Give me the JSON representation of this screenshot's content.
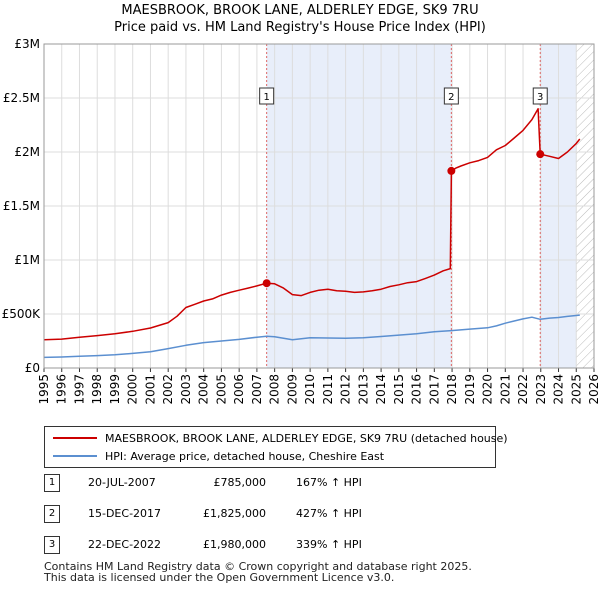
{
  "chart_data": {
    "type": "line",
    "title": "MAESBROOK, BROOK LANE, ALDERLEY EDGE, SK9 7RU",
    "subtitle": "Price paid vs. HM Land Registry's House Price Index (HPI)",
    "xlim": [
      1995,
      2026
    ],
    "ylim": [
      0,
      3000000
    ],
    "y_ticks": [
      {
        "value": 0,
        "label": "£0"
      },
      {
        "value": 500000,
        "label": "£500K"
      },
      {
        "value": 1000000,
        "label": "£1M"
      },
      {
        "value": 1500000,
        "label": "£1.5M"
      },
      {
        "value": 2000000,
        "label": "£2M"
      },
      {
        "value": 2500000,
        "label": "£2.5M"
      },
      {
        "value": 3000000,
        "label": "£3M"
      }
    ],
    "x_ticks": [
      "1995",
      "1996",
      "1997",
      "1998",
      "1999",
      "2000",
      "2001",
      "2002",
      "2003",
      "2004",
      "2005",
      "2006",
      "2007",
      "2008",
      "2009",
      "2010",
      "2011",
      "2012",
      "2013",
      "2014",
      "2015",
      "2016",
      "2017",
      "2018",
      "2019",
      "2020",
      "2021",
      "2022",
      "2023",
      "2024",
      "2025",
      "2026"
    ],
    "shaded_ranges": [
      [
        2007.55,
        2017.96
      ],
      [
        2022.97,
        2025.0
      ]
    ],
    "hatched_range": [
      2025.0,
      2026.0
    ],
    "series": [
      {
        "name": "MAESBROOK, BROOK LANE, ALDERLEY EDGE, SK9 7RU (detached house)",
        "color": "#cc0000",
        "points": [
          [
            1995.0,
            262000
          ],
          [
            1996.0,
            268000
          ],
          [
            1997.0,
            285000
          ],
          [
            1998.0,
            300000
          ],
          [
            1999.0,
            318000
          ],
          [
            2000.0,
            340000
          ],
          [
            2001.0,
            370000
          ],
          [
            2002.0,
            420000
          ],
          [
            2002.5,
            480000
          ],
          [
            2003.0,
            560000
          ],
          [
            2003.5,
            590000
          ],
          [
            2004.0,
            620000
          ],
          [
            2004.5,
            640000
          ],
          [
            2005.0,
            675000
          ],
          [
            2005.5,
            700000
          ],
          [
            2006.0,
            720000
          ],
          [
            2006.5,
            740000
          ],
          [
            2007.0,
            760000
          ],
          [
            2007.55,
            785000
          ],
          [
            2008.0,
            780000
          ],
          [
            2008.5,
            740000
          ],
          [
            2009.0,
            680000
          ],
          [
            2009.5,
            670000
          ],
          [
            2010.0,
            700000
          ],
          [
            2010.5,
            720000
          ],
          [
            2011.0,
            730000
          ],
          [
            2011.5,
            715000
          ],
          [
            2012.0,
            710000
          ],
          [
            2012.5,
            700000
          ],
          [
            2013.0,
            705000
          ],
          [
            2013.5,
            715000
          ],
          [
            2014.0,
            730000
          ],
          [
            2014.5,
            755000
          ],
          [
            2015.0,
            770000
          ],
          [
            2015.5,
            790000
          ],
          [
            2016.0,
            800000
          ],
          [
            2016.5,
            830000
          ],
          [
            2017.0,
            860000
          ],
          [
            2017.5,
            900000
          ],
          [
            2017.9,
            920000
          ],
          [
            2017.96,
            1825000
          ],
          [
            2018.2,
            1850000
          ],
          [
            2018.5,
            1870000
          ],
          [
            2019.0,
            1900000
          ],
          [
            2019.5,
            1920000
          ],
          [
            2020.0,
            1950000
          ],
          [
            2020.5,
            2020000
          ],
          [
            2021.0,
            2060000
          ],
          [
            2021.5,
            2130000
          ],
          [
            2022.0,
            2200000
          ],
          [
            2022.5,
            2300000
          ],
          [
            2022.85,
            2400000
          ],
          [
            2022.97,
            1980000
          ],
          [
            2023.5,
            1960000
          ],
          [
            2024.0,
            1940000
          ],
          [
            2024.5,
            2000000
          ],
          [
            2025.0,
            2080000
          ],
          [
            2025.2,
            2120000
          ]
        ]
      },
      {
        "name": "HPI: Average price, detached house, Cheshire East",
        "color": "#5b8fd0",
        "points": [
          [
            1995.0,
            98000
          ],
          [
            1996.0,
            102000
          ],
          [
            1997.0,
            108000
          ],
          [
            1998.0,
            115000
          ],
          [
            1999.0,
            122000
          ],
          [
            2000.0,
            135000
          ],
          [
            2001.0,
            150000
          ],
          [
            2002.0,
            180000
          ],
          [
            2003.0,
            210000
          ],
          [
            2004.0,
            235000
          ],
          [
            2005.0,
            250000
          ],
          [
            2006.0,
            265000
          ],
          [
            2007.0,
            285000
          ],
          [
            2007.55,
            294000
          ],
          [
            2008.0,
            290000
          ],
          [
            2008.5,
            275000
          ],
          [
            2009.0,
            262000
          ],
          [
            2009.5,
            270000
          ],
          [
            2010.0,
            280000
          ],
          [
            2011.0,
            278000
          ],
          [
            2012.0,
            275000
          ],
          [
            2013.0,
            280000
          ],
          [
            2014.0,
            292000
          ],
          [
            2015.0,
            305000
          ],
          [
            2016.0,
            318000
          ],
          [
            2017.0,
            335000
          ],
          [
            2017.96,
            346000
          ],
          [
            2019.0,
            360000
          ],
          [
            2020.0,
            372000
          ],
          [
            2020.5,
            390000
          ],
          [
            2021.0,
            415000
          ],
          [
            2021.5,
            435000
          ],
          [
            2022.0,
            455000
          ],
          [
            2022.5,
            470000
          ],
          [
            2022.97,
            451000
          ],
          [
            2023.5,
            462000
          ],
          [
            2024.0,
            468000
          ],
          [
            2024.5,
            478000
          ],
          [
            2025.2,
            490000
          ]
        ]
      }
    ],
    "sales": [
      {
        "id": "1",
        "x": 2007.55,
        "value": 785000
      },
      {
        "id": "2",
        "x": 2017.96,
        "value": 1825000
      },
      {
        "id": "3",
        "x": 2022.97,
        "value": 1980000
      }
    ]
  },
  "legend": {
    "items": [
      {
        "label": "MAESBROOK, BROOK LANE, ALDERLEY EDGE, SK9 7RU (detached house)",
        "color": "#cc0000"
      },
      {
        "label": "HPI: Average price, detached house, Cheshire East",
        "color": "#5b8fd0"
      }
    ]
  },
  "sales_table": [
    {
      "num": "1",
      "date": "20-JUL-2007",
      "price": "£785,000",
      "hpi": "167% ↑ HPI"
    },
    {
      "num": "2",
      "date": "15-DEC-2017",
      "price": "£1,825,000",
      "hpi": "427% ↑ HPI"
    },
    {
      "num": "3",
      "date": "22-DEC-2022",
      "price": "£1,980,000",
      "hpi": "339% ↑ HPI"
    }
  ],
  "footer": {
    "line1": "Contains HM Land Registry data © Crown copyright and database right 2025.",
    "line2": "This data is licensed under the Open Government Licence v3.0."
  }
}
